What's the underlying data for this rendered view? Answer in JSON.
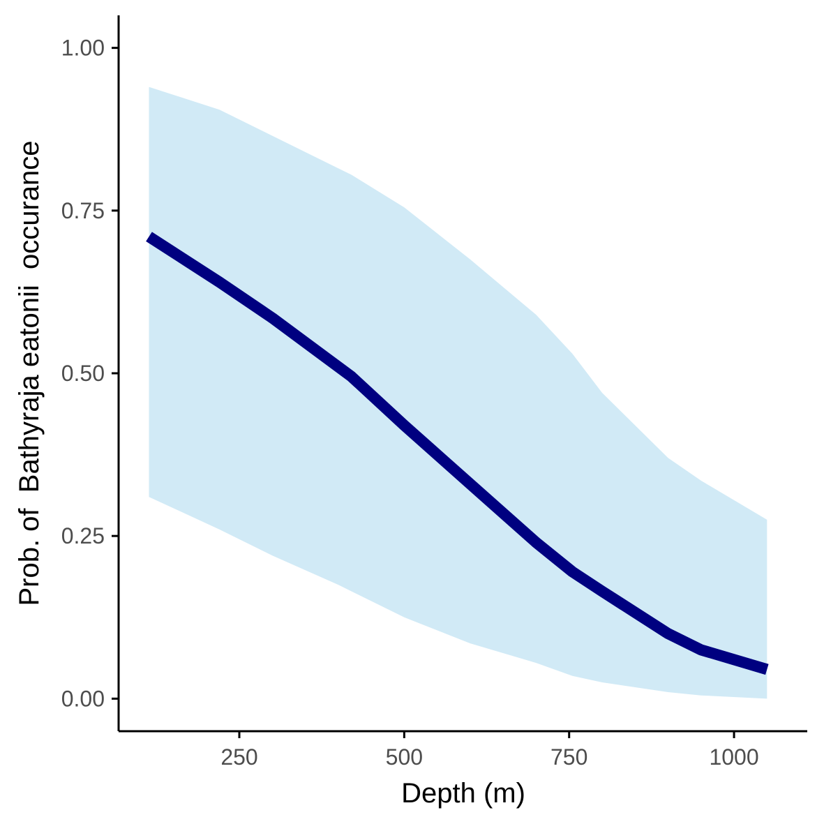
{
  "chart_data": {
    "type": "line",
    "title": "",
    "xlabel": "Depth (m)",
    "ylabel": "Prob. of  Bathyraja eatonii  occurance",
    "xlim": [
      67,
      1111
    ],
    "ylim": [
      -0.05,
      1.05
    ],
    "x_ticks": [
      250,
      500,
      750,
      1000
    ],
    "x_tick_labels": [
      "250",
      "500",
      "750",
      "1000"
    ],
    "y_ticks": [
      0,
      0.25,
      0.5,
      0.75,
      1.0
    ],
    "y_tick_labels": [
      "0.00",
      "0.25",
      "0.50",
      "0.75",
      "1.00"
    ],
    "grid": false,
    "legend": "none",
    "colors": {
      "line": "#000080",
      "ribbon": "#d1eaf6",
      "axis": "#000000"
    },
    "series": [
      {
        "x": [
          113,
          220,
          300,
          400,
          420,
          500,
          600,
          700,
          755,
          800,
          900,
          950,
          1050
        ],
        "y": [
          0.71,
          0.64,
          0.585,
          0.51,
          0.495,
          0.42,
          0.33,
          0.24,
          0.195,
          0.165,
          0.1,
          0.075,
          0.045
        ],
        "lower": [
          0.31,
          0.26,
          0.22,
          0.175,
          0.165,
          0.125,
          0.085,
          0.055,
          0.035,
          0.025,
          0.01,
          0.005,
          0.0
        ],
        "upper": [
          0.94,
          0.905,
          0.865,
          0.815,
          0.805,
          0.755,
          0.675,
          0.59,
          0.53,
          0.47,
          0.37,
          0.335,
          0.275
        ]
      }
    ]
  }
}
